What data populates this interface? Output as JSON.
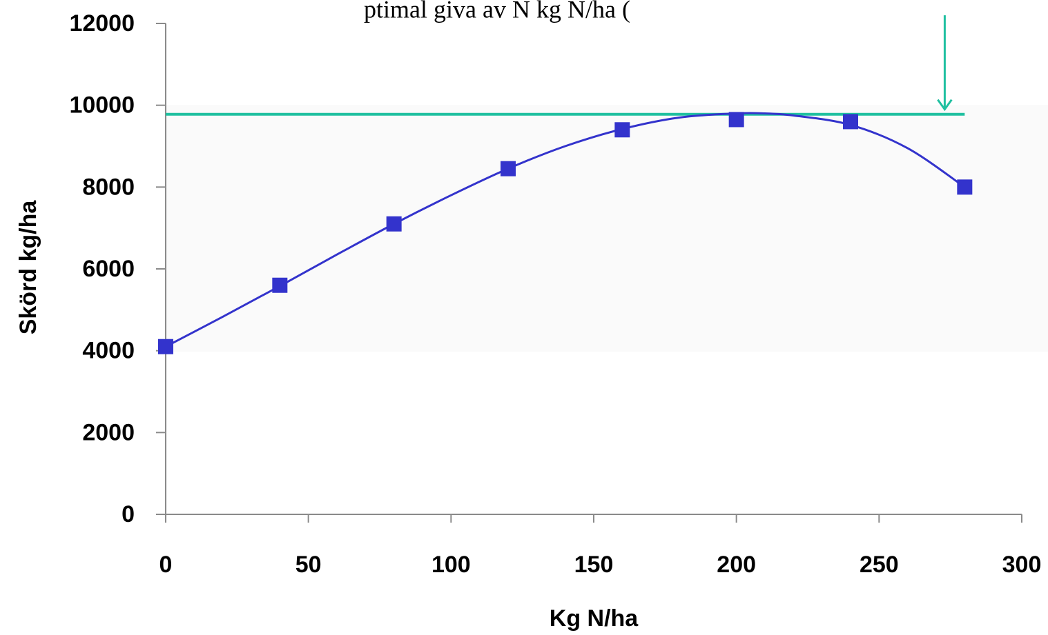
{
  "chart_data": {
    "type": "scatter",
    "title": "",
    "top_caption": "ptimal giva av N kg N/ha (",
    "xlabel": "Kg N/ha",
    "ylabel": "Skörd kg/ha",
    "xlim": [
      0,
      300
    ],
    "ylim": [
      0,
      12000
    ],
    "x_ticks": [
      0,
      50,
      100,
      150,
      200,
      250,
      300
    ],
    "y_ticks": [
      0,
      2000,
      4000,
      6000,
      8000,
      10000,
      12000
    ],
    "grid": false,
    "legend": "none",
    "series": [
      {
        "type": "scatter",
        "marker": "square",
        "color": "#3333cc",
        "x": [
          0,
          40,
          80,
          120,
          160,
          200,
          240,
          280
        ],
        "y": [
          4100,
          5600,
          7100,
          8450,
          9400,
          9650,
          9600,
          8000
        ]
      },
      {
        "type": "line",
        "color": "#3333cc",
        "x": [
          0,
          20,
          40,
          60,
          80,
          100,
          120,
          140,
          160,
          180,
          200,
          210,
          220,
          240,
          260,
          280
        ],
        "y": [
          4100,
          4830,
          5580,
          6350,
          7100,
          7800,
          8450,
          9000,
          9420,
          9700,
          9800,
          9800,
          9750,
          9520,
          8950,
          8000
        ]
      },
      {
        "type": "hline",
        "color": "#20c0a0",
        "y": 9780,
        "x_range": [
          0,
          280
        ]
      }
    ],
    "annotations": [
      {
        "type": "arrow",
        "color": "#20c0a0",
        "x": 273,
        "y_from": 12200,
        "y_to": 9900
      }
    ]
  }
}
